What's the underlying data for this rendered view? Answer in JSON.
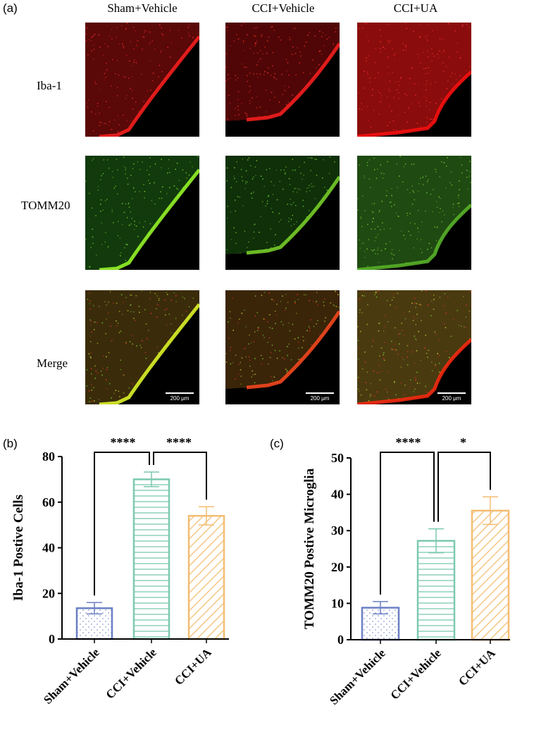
{
  "panel_a": {
    "letter": "(a)",
    "columns": [
      "Sham+Vehicle",
      "CCI+Vehicle",
      "CCI+UA"
    ],
    "rows": [
      "Iba-1",
      "TOMM20",
      "Merge"
    ],
    "scale_bar": "200 μm"
  },
  "chart_data": [
    {
      "panel": "(b)",
      "type": "bar",
      "categories": [
        "Sham+Vehicle",
        "CCI+Vehicle",
        "CCI+UA"
      ],
      "values": [
        13.5,
        70,
        54
      ],
      "errors": [
        2.5,
        3.2,
        4
      ],
      "ylabel": "Iba-1 Postive Cells",
      "ylim": [
        0,
        80
      ],
      "yticks": [
        0,
        20,
        40,
        60,
        80
      ],
      "colors": [
        "#6b7fc4",
        "#7cc9b1",
        "#f3bd72"
      ],
      "patterns": [
        "dots",
        "horizontal",
        "diagonal"
      ],
      "significance": [
        {
          "from": 0,
          "to": 1,
          "label": "****"
        },
        {
          "from": 1,
          "to": 2,
          "label": "****"
        }
      ]
    },
    {
      "panel": "(c)",
      "type": "bar",
      "categories": [
        "Sham+Vehicle",
        "CCI+Vehicle",
        "CCI+UA"
      ],
      "values": [
        8.8,
        27.2,
        35.5
      ],
      "errors": [
        1.7,
        3.3,
        3.8
      ],
      "ylabel": "TOMM20 Postive Microglia",
      "ylim": [
        0,
        50
      ],
      "yticks": [
        0,
        10,
        20,
        30,
        40,
        50
      ],
      "colors": [
        "#6b7fc4",
        "#7cc9b1",
        "#f3bd72"
      ],
      "patterns": [
        "dots",
        "horizontal",
        "diagonal"
      ],
      "significance": [
        {
          "from": 0,
          "to": 1,
          "label": "****"
        },
        {
          "from": 1,
          "to": 2,
          "label": "*"
        }
      ]
    }
  ]
}
